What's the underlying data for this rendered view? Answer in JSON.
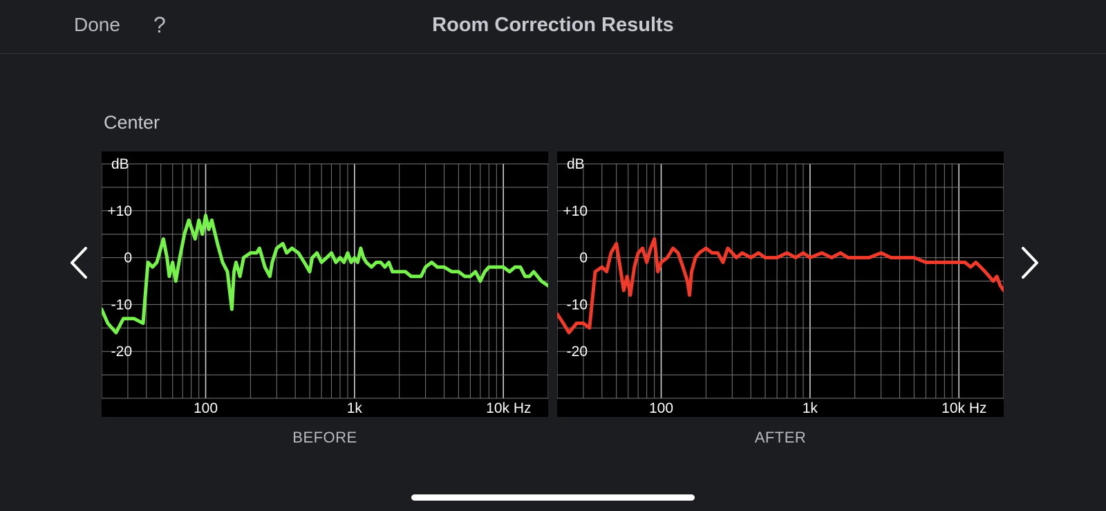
{
  "nav": {
    "done_label": "Done",
    "help_label": "?",
    "title": "Room Correction Results"
  },
  "channel_label": "Center",
  "icons": {
    "prev": "chevron-left-icon",
    "next": "chevron-right-icon"
  },
  "colors": {
    "background": "#1c1d21",
    "before_curve": "#77f24d",
    "after_curve": "#ef3a2c",
    "grid": "#8a8a8a"
  },
  "chart_data": [
    {
      "type": "line",
      "caption": "BEFORE",
      "ylabel": "dB",
      "xunit": "Hz",
      "xscale": "log",
      "xlim": [
        20,
        20000
      ],
      "ylim": [
        -30,
        20
      ],
      "y_ticks": [
        {
          "value": 10,
          "label": "+10"
        },
        {
          "value": 0,
          "label": "0"
        },
        {
          "value": -10,
          "label": "-10"
        },
        {
          "value": -20,
          "label": "-20"
        }
      ],
      "x_ticks": [
        {
          "value": 100,
          "label": "100"
        },
        {
          "value": 1000,
          "label": "1k"
        },
        {
          "value": 10000,
          "label": "10k Hz"
        }
      ],
      "grid": true,
      "series": [
        {
          "color": "#77f24d",
          "points": [
            [
              20,
              -11
            ],
            [
              22,
              -14
            ],
            [
              25,
              -16
            ],
            [
              28,
              -13
            ],
            [
              33,
              -13
            ],
            [
              38,
              -14
            ],
            [
              40,
              -5
            ],
            [
              41,
              -1
            ],
            [
              44,
              -2
            ],
            [
              47,
              -1
            ],
            [
              52,
              4
            ],
            [
              55,
              0
            ],
            [
              57,
              -4
            ],
            [
              60,
              -1
            ],
            [
              63,
              -5
            ],
            [
              67,
              0
            ],
            [
              72,
              5
            ],
            [
              77,
              8
            ],
            [
              85,
              4
            ],
            [
              90,
              8
            ],
            [
              95,
              5
            ],
            [
              100,
              9
            ],
            [
              105,
              6
            ],
            [
              110,
              8
            ],
            [
              120,
              3
            ],
            [
              130,
              -1
            ],
            [
              140,
              -3
            ],
            [
              150,
              -11
            ],
            [
              155,
              -3
            ],
            [
              160,
              -1
            ],
            [
              170,
              -4
            ],
            [
              180,
              0
            ],
            [
              200,
              1
            ],
            [
              220,
              1
            ],
            [
              230,
              2
            ],
            [
              250,
              -2
            ],
            [
              270,
              -4
            ],
            [
              280,
              -1
            ],
            [
              300,
              2
            ],
            [
              330,
              3
            ],
            [
              350,
              1
            ],
            [
              380,
              2
            ],
            [
              420,
              1
            ],
            [
              460,
              -1
            ],
            [
              500,
              -3
            ],
            [
              520,
              0
            ],
            [
              560,
              1
            ],
            [
              600,
              -1
            ],
            [
              650,
              0
            ],
            [
              700,
              1
            ],
            [
              750,
              -1
            ],
            [
              800,
              0
            ],
            [
              850,
              -1
            ],
            [
              900,
              1
            ],
            [
              950,
              -1
            ],
            [
              1000,
              0
            ],
            [
              1050,
              -1
            ],
            [
              1100,
              2
            ],
            [
              1150,
              0
            ],
            [
              1200,
              -1
            ],
            [
              1300,
              -2
            ],
            [
              1400,
              -1
            ],
            [
              1500,
              -1
            ],
            [
              1600,
              -2
            ],
            [
              1700,
              -1
            ],
            [
              1800,
              -3
            ],
            [
              2000,
              -3
            ],
            [
              2200,
              -3
            ],
            [
              2400,
              -4
            ],
            [
              2600,
              -4
            ],
            [
              2800,
              -4
            ],
            [
              3000,
              -2
            ],
            [
              3300,
              -1
            ],
            [
              3600,
              -2
            ],
            [
              4000,
              -2
            ],
            [
              4500,
              -3
            ],
            [
              5000,
              -3
            ],
            [
              5500,
              -4
            ],
            [
              6000,
              -4
            ],
            [
              6500,
              -3
            ],
            [
              7000,
              -5
            ],
            [
              7500,
              -3
            ],
            [
              8000,
              -2
            ],
            [
              9000,
              -2
            ],
            [
              10000,
              -2
            ],
            [
              11000,
              -3
            ],
            [
              12000,
              -2
            ],
            [
              13000,
              -2
            ],
            [
              14000,
              -4
            ],
            [
              15000,
              -4
            ],
            [
              16000,
              -3
            ],
            [
              18000,
              -5
            ],
            [
              20000,
              -6
            ]
          ]
        }
      ]
    },
    {
      "type": "line",
      "caption": "AFTER",
      "ylabel": "dB",
      "xunit": "Hz",
      "xscale": "log",
      "xlim": [
        20,
        20000
      ],
      "ylim": [
        -30,
        20
      ],
      "y_ticks": [
        {
          "value": 10,
          "label": "+10"
        },
        {
          "value": 0,
          "label": "0"
        },
        {
          "value": -10,
          "label": "-10"
        },
        {
          "value": -20,
          "label": "-20"
        }
      ],
      "x_ticks": [
        {
          "value": 100,
          "label": "100"
        },
        {
          "value": 1000,
          "label": "1k"
        },
        {
          "value": 10000,
          "label": "10k Hz"
        }
      ],
      "grid": true,
      "series": [
        {
          "color": "#ef3a2c",
          "points": [
            [
              20,
              -12
            ],
            [
              22,
              -14
            ],
            [
              24,
              -16
            ],
            [
              27,
              -14
            ],
            [
              30,
              -14
            ],
            [
              33,
              -15
            ],
            [
              36,
              -3
            ],
            [
              40,
              -2
            ],
            [
              43,
              -3
            ],
            [
              46,
              1
            ],
            [
              50,
              3
            ],
            [
              53,
              -2
            ],
            [
              56,
              -7
            ],
            [
              59,
              -4
            ],
            [
              62,
              -8
            ],
            [
              66,
              -2
            ],
            [
              70,
              1
            ],
            [
              75,
              2
            ],
            [
              80,
              -1
            ],
            [
              85,
              2
            ],
            [
              90,
              4
            ],
            [
              95,
              -3
            ],
            [
              100,
              -1
            ],
            [
              110,
              0
            ],
            [
              120,
              2
            ],
            [
              130,
              1
            ],
            [
              140,
              -2
            ],
            [
              150,
              -5
            ],
            [
              155,
              -8
            ],
            [
              160,
              -3
            ],
            [
              170,
              0
            ],
            [
              180,
              1
            ],
            [
              200,
              2
            ],
            [
              220,
              1
            ],
            [
              240,
              1
            ],
            [
              260,
              -1
            ],
            [
              280,
              2
            ],
            [
              300,
              1
            ],
            [
              320,
              0
            ],
            [
              350,
              1
            ],
            [
              400,
              0
            ],
            [
              450,
              1
            ],
            [
              500,
              0
            ],
            [
              600,
              0
            ],
            [
              700,
              1
            ],
            [
              800,
              0
            ],
            [
              900,
              1
            ],
            [
              1000,
              0
            ],
            [
              1200,
              1
            ],
            [
              1400,
              0
            ],
            [
              1600,
              1
            ],
            [
              1800,
              0
            ],
            [
              2000,
              0
            ],
            [
              2500,
              0
            ],
            [
              3000,
              1
            ],
            [
              3500,
              0
            ],
            [
              4000,
              0
            ],
            [
              5000,
              0
            ],
            [
              6000,
              -1
            ],
            [
              7000,
              -1
            ],
            [
              8000,
              -1
            ],
            [
              9000,
              -1
            ],
            [
              10000,
              -1
            ],
            [
              11000,
              -1
            ],
            [
              12000,
              -2
            ],
            [
              13000,
              -1
            ],
            [
              14000,
              -2
            ],
            [
              15000,
              -3
            ],
            [
              16000,
              -4
            ],
            [
              17000,
              -5
            ],
            [
              18000,
              -4
            ],
            [
              19000,
              -6
            ],
            [
              20000,
              -7
            ]
          ]
        }
      ]
    }
  ]
}
